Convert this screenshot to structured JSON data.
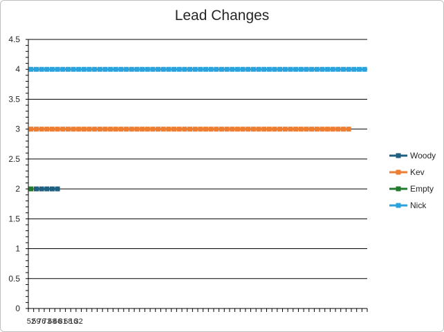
{
  "chart_data": {
    "type": "line",
    "title": "Lead Changes",
    "xlabel": "",
    "ylabel": "",
    "ylim": [
      0,
      4.5
    ],
    "yticks": [
      "0",
      "0.5",
      "1",
      "1.5",
      "2",
      "2.5",
      "3",
      "3.5",
      "4",
      "4.5"
    ],
    "grid": true,
    "legend_position": "right",
    "x_category_count": 64,
    "x_tick_labels": [
      "52",
      "59",
      "76",
      "73",
      "68",
      "66",
      "81",
      "68",
      "16",
      "32"
    ],
    "series": [
      {
        "name": "Woody",
        "color": "#1f5f7f",
        "start": 1,
        "end": 5,
        "y": 2
      },
      {
        "name": "Kev",
        "color": "#ed7d31",
        "start": 0,
        "end": 60,
        "y": 3
      },
      {
        "name": "Empty",
        "color": "#217a2e",
        "start": 0,
        "end": 0,
        "y": 2
      },
      {
        "name": "Nick",
        "color": "#2aa2dc",
        "start": 0,
        "end": 63,
        "y": 4
      }
    ]
  }
}
